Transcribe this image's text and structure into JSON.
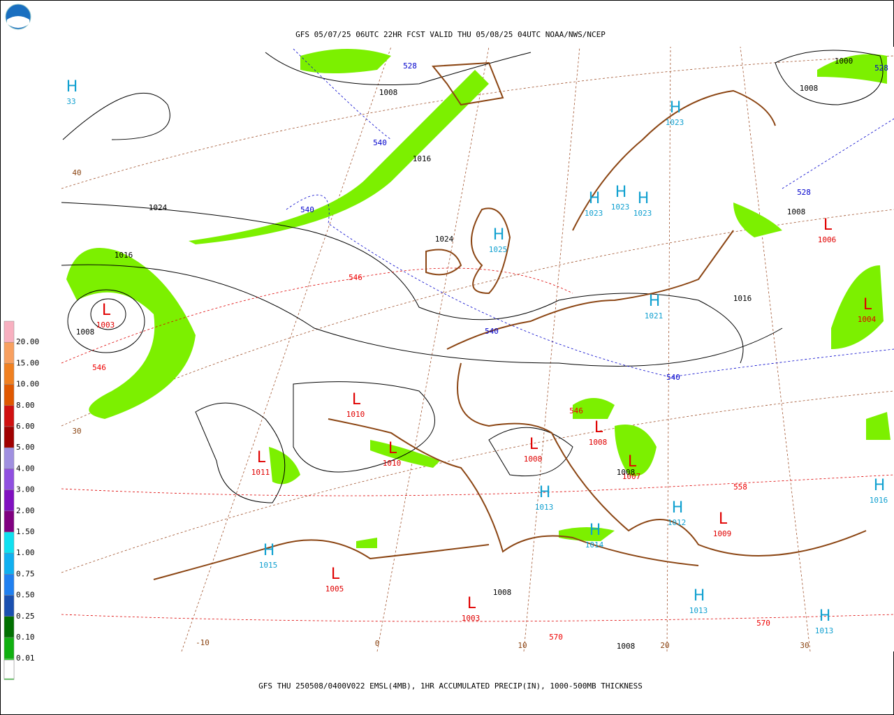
{
  "header": {
    "title": "GFS 05/07/25 06UTC 22HR FCST VALID THU 05/08/25 04UTC NOAA/NWS/NCEP"
  },
  "footer": {
    "caption": "GFS THU 250508/0400V022 EMSL(4MB), 1HR ACCUMULATED PRECIP(IN), 1000-500MB THICKNESS"
  },
  "legend": {
    "labels": [
      "20.00",
      "15.00",
      "10.00",
      "8.00",
      "6.00",
      "5.00",
      "4.00",
      "3.00",
      "2.00",
      "1.50",
      "1.00",
      "0.75",
      "0.50",
      "0.25",
      "0.10",
      "0.01"
    ]
  },
  "pressure_centers": [
    {
      "symbol": "H",
      "value": "33"
    },
    {
      "symbol": "L",
      "value": "1003"
    },
    {
      "symbol": "L",
      "value": "1010"
    },
    {
      "symbol": "L",
      "value": "1010"
    },
    {
      "symbol": "L",
      "value": "1011"
    },
    {
      "symbol": "L",
      "value": "1008"
    },
    {
      "symbol": "L",
      "value": "1008"
    },
    {
      "symbol": "L",
      "value": "1007"
    },
    {
      "symbol": "L",
      "value": "1005"
    },
    {
      "symbol": "L",
      "value": "1003"
    },
    {
      "symbol": "L",
      "value": "1009"
    },
    {
      "symbol": "L",
      "value": "1006"
    },
    {
      "symbol": "L",
      "value": "1004"
    },
    {
      "symbol": "H",
      "value": "1023"
    },
    {
      "symbol": "H",
      "value": "1023"
    },
    {
      "symbol": "H",
      "value": "1023"
    },
    {
      "symbol": "H",
      "value": "1023"
    },
    {
      "symbol": "H",
      "value": "1025"
    },
    {
      "symbol": "H",
      "value": "1021"
    },
    {
      "symbol": "H",
      "value": "1013"
    },
    {
      "symbol": "H",
      "value": "1014"
    },
    {
      "symbol": "H",
      "value": "1012"
    },
    {
      "symbol": "H",
      "value": "1016"
    },
    {
      "symbol": "H",
      "value": "1015"
    },
    {
      "symbol": "H",
      "value": "1013"
    },
    {
      "symbol": "H",
      "value": "1013"
    }
  ],
  "isobar_labels": [
    "1008",
    "1016",
    "1024",
    "1024",
    "1016",
    "1008",
    "1000",
    "1008",
    "1008",
    "1016",
    "1008",
    "1008",
    "1008"
  ],
  "thickness_labels": [
    "528",
    "540",
    "540",
    "540",
    "540",
    "528",
    "528",
    "546",
    "546",
    "546",
    "558",
    "570",
    "570"
  ],
  "grid_labels": [
    "40",
    "30",
    "-10",
    "0",
    "10",
    "20",
    "30"
  ]
}
